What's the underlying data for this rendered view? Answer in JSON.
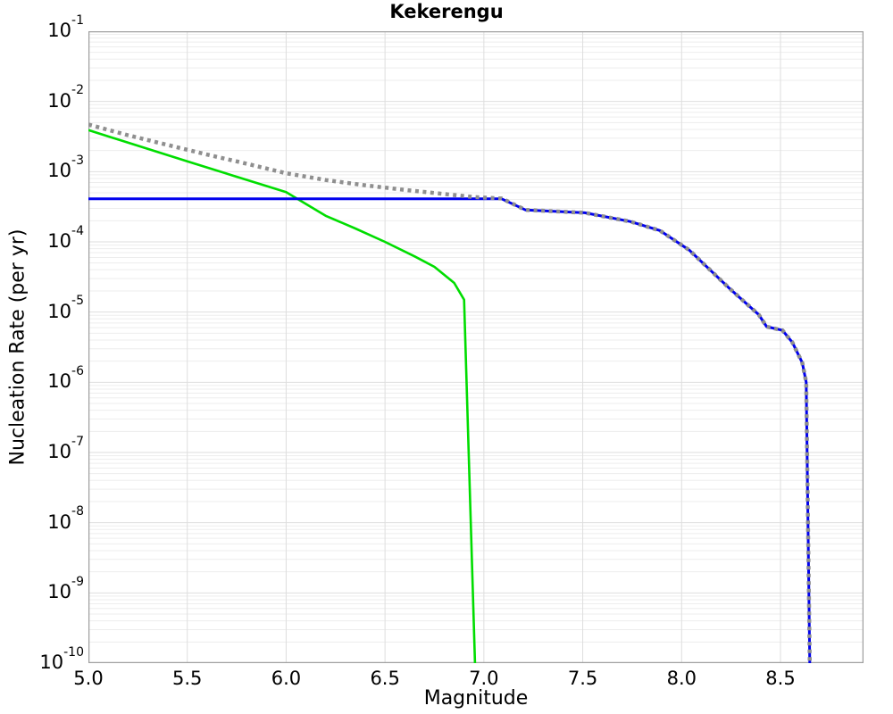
{
  "chart_data": {
    "type": "line",
    "title": "Kekerengu",
    "xlabel": "Magnitude",
    "ylabel": "Nucleation Rate (per yr)",
    "x_axis": {
      "min": 5.0,
      "max": 8.92,
      "tick_values": [
        5.0,
        5.5,
        6.0,
        6.5,
        7.0,
        7.5,
        8.0,
        8.5
      ],
      "tick_labels": [
        "5.0",
        "5.5",
        "6.0",
        "6.5",
        "7.0",
        "7.5",
        "8.0",
        "8.5"
      ]
    },
    "y_axis": {
      "scale": "log",
      "min_exp": -10,
      "max_exp": -1,
      "tick_base": "10",
      "tick_exponents": [
        "-1",
        "-2",
        "-3",
        "-4",
        "-5",
        "-6",
        "-7",
        "-8",
        "-9",
        "-10"
      ]
    },
    "grid": {
      "shown": true,
      "minor_color": "#ededed",
      "major_color": "#dedede",
      "frame_color": "#a0a0a0"
    },
    "legend": {
      "shown": false
    },
    "series": [
      {
        "id": "green-curve",
        "name": "green solid curve",
        "color": "#00dd00",
        "style": "solid",
        "width": 2.6,
        "points": [
          [
            5.0,
            0.0039
          ],
          [
            5.5,
            0.0014
          ],
          [
            6.0,
            0.00051
          ],
          [
            6.2,
            0.000235
          ],
          [
            6.35,
            0.000155
          ],
          [
            6.5,
            0.0001
          ],
          [
            6.65,
            6.2e-05
          ],
          [
            6.75,
            4.4e-05
          ],
          [
            6.85,
            2.6e-05
          ],
          [
            6.9,
            1.5e-05
          ],
          [
            6.955,
            1e-10
          ]
        ]
      },
      {
        "id": "blue-curve",
        "name": "blue solid curve",
        "color": "#0000ee",
        "style": "solid",
        "width": 3,
        "points": [
          [
            5.0,
            0.00041
          ],
          [
            7.09,
            0.00041
          ],
          [
            7.21,
            0.000285
          ],
          [
            7.51,
            0.00026
          ],
          [
            7.74,
            0.000195
          ],
          [
            7.89,
            0.000145
          ],
          [
            8.04,
            7.6e-05
          ],
          [
            8.24,
            2.2e-05
          ],
          [
            8.39,
            9.2e-06
          ],
          [
            8.43,
            6.2e-06
          ],
          [
            8.51,
            5.5e-06
          ],
          [
            8.56,
            3.7e-06
          ],
          [
            8.61,
            1.9e-06
          ],
          [
            8.63,
            1e-06
          ],
          [
            8.648,
            1e-10
          ]
        ]
      },
      {
        "id": "gray-dotted-curve",
        "name": "gray dotted curve",
        "color": "#8f8f8f",
        "style": "dotted",
        "width": 4.5,
        "points": [
          [
            5.0,
            0.0047
          ],
          [
            5.2,
            0.0033
          ],
          [
            5.4,
            0.0024
          ],
          [
            5.6,
            0.00175
          ],
          [
            5.8,
            0.0013
          ],
          [
            6.0,
            0.00095
          ],
          [
            6.2,
            0.00076
          ],
          [
            6.4,
            0.00064
          ],
          [
            6.6,
            0.00055
          ],
          [
            6.8,
            0.00048
          ],
          [
            6.95,
            0.000435
          ],
          [
            7.09,
            0.000415
          ],
          [
            7.21,
            0.000285
          ],
          [
            7.51,
            0.00026
          ],
          [
            7.74,
            0.000195
          ],
          [
            7.89,
            0.000145
          ],
          [
            8.04,
            7.6e-05
          ],
          [
            8.24,
            2.2e-05
          ],
          [
            8.39,
            9.2e-06
          ],
          [
            8.43,
            6.2e-06
          ],
          [
            8.51,
            5.5e-06
          ],
          [
            8.56,
            3.7e-06
          ],
          [
            8.61,
            1.9e-06
          ],
          [
            8.63,
            1e-06
          ],
          [
            8.648,
            1e-10
          ]
        ]
      }
    ]
  }
}
